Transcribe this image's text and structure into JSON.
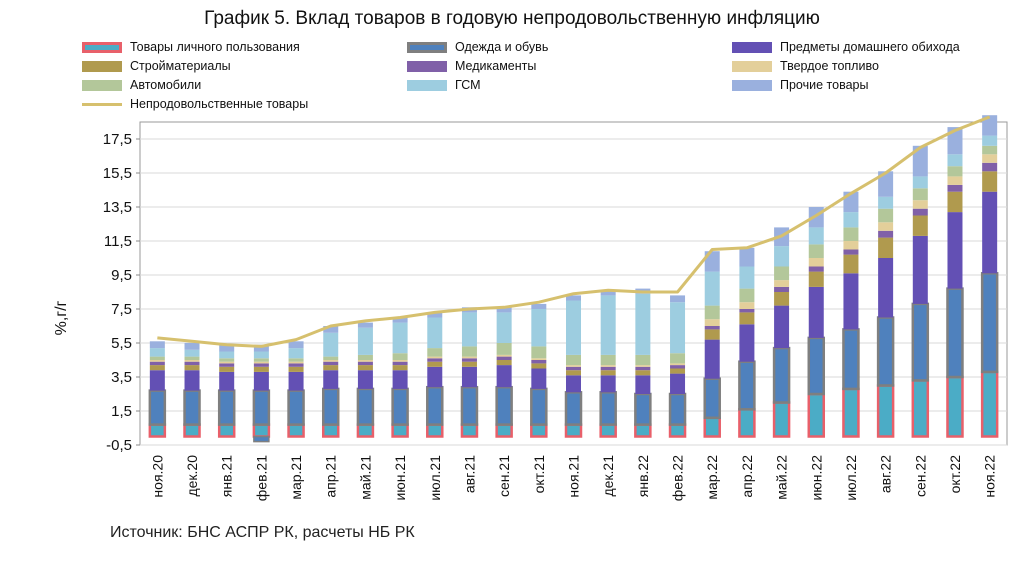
{
  "chart_data": {
    "type": "bar",
    "title": "График 5. Вклад товаров в годовую непродовольственную инфляцию",
    "ylabel": "%,г/г",
    "xlabel": "",
    "ylim": [
      -0.5,
      18.5
    ],
    "yticks": [
      "-0,5",
      "1,5",
      "3,5",
      "5,5",
      "7,5",
      "9,5",
      "11,5",
      "13,5",
      "15,5",
      "17,5"
    ],
    "ytick_values": [
      -0.5,
      1.5,
      3.5,
      5.5,
      7.5,
      9.5,
      11.5,
      13.5,
      15.5,
      17.5
    ],
    "grid": true,
    "legend_position": "top",
    "categories": [
      "ноя.20",
      "дек.20",
      "янв.21",
      "фев.21",
      "мар.21",
      "апр.21",
      "май.21",
      "июн.21",
      "июл.21",
      "авг.21",
      "сен.21",
      "окт.21",
      "ноя.21",
      "дек.21",
      "янв.22",
      "фев.22",
      "мар.22",
      "апр.22",
      "май.22",
      "июн.22",
      "июл.22",
      "авг.22",
      "сен.22",
      "окт.22",
      "ноя.22"
    ],
    "series": [
      {
        "name": "Товары личного пользования",
        "color": "#4bacc6",
        "border": "#e8606a",
        "values": [
          0.7,
          0.7,
          0.7,
          0.7,
          0.7,
          0.7,
          0.7,
          0.7,
          0.7,
          0.7,
          0.7,
          0.7,
          0.7,
          0.7,
          0.7,
          0.7,
          1.1,
          1.6,
          2.0,
          2.5,
          2.8,
          3.0,
          3.3,
          3.5,
          3.8
        ]
      },
      {
        "name": "Одежда и обувь",
        "color": "#4f81bd",
        "border": "#7f7f7f",
        "values": [
          2.0,
          2.0,
          2.0,
          2.0,
          2.0,
          2.1,
          2.1,
          2.1,
          2.2,
          2.2,
          2.2,
          2.1,
          1.9,
          1.9,
          1.8,
          1.8,
          2.3,
          2.8,
          3.2,
          3.3,
          3.5,
          4.0,
          4.5,
          5.2,
          5.8
        ]
      },
      {
        "name": "Предметы домашнего обихода",
        "color": "#6350b4",
        "values": [
          1.2,
          1.2,
          1.1,
          1.1,
          1.1,
          1.1,
          1.1,
          1.1,
          1.2,
          1.2,
          1.3,
          1.2,
          1.0,
          1.0,
          1.1,
          1.2,
          2.3,
          2.2,
          2.5,
          3.0,
          3.3,
          3.5,
          4.0,
          4.5,
          4.8
        ]
      },
      {
        "name": "Стройматериалы",
        "color": "#b09a4e",
        "values": [
          0.3,
          0.3,
          0.3,
          0.3,
          0.3,
          0.3,
          0.3,
          0.3,
          0.3,
          0.3,
          0.3,
          0.3,
          0.3,
          0.3,
          0.3,
          0.3,
          0.6,
          0.7,
          0.8,
          0.9,
          1.1,
          1.2,
          1.2,
          1.2,
          1.2
        ]
      },
      {
        "name": "Медикаменты",
        "color": "#8060a8",
        "values": [
          0.2,
          0.2,
          0.2,
          0.2,
          0.2,
          0.2,
          0.2,
          0.2,
          0.2,
          0.2,
          0.2,
          0.2,
          0.2,
          0.2,
          0.2,
          0.2,
          0.2,
          0.2,
          0.3,
          0.3,
          0.3,
          0.4,
          0.4,
          0.4,
          0.5
        ]
      },
      {
        "name": "Твердое топливо",
        "color": "#e3cf9a",
        "values": [
          0.1,
          0.1,
          0.1,
          0.1,
          0.1,
          0.1,
          0.1,
          0.1,
          0.1,
          0.1,
          0.1,
          0.1,
          0.1,
          0.1,
          0.1,
          0.1,
          0.4,
          0.4,
          0.4,
          0.5,
          0.5,
          0.5,
          0.5,
          0.5,
          0.5
        ]
      },
      {
        "name": "Автомобили",
        "color": "#b3c79a",
        "values": [
          0.2,
          0.2,
          0.2,
          0.2,
          0.2,
          0.2,
          0.3,
          0.4,
          0.5,
          0.6,
          0.7,
          0.7,
          0.6,
          0.6,
          0.6,
          0.6,
          0.8,
          0.8,
          0.8,
          0.8,
          0.8,
          0.8,
          0.7,
          0.6,
          0.5
        ]
      },
      {
        "name": "ГСМ",
        "color": "#9dcde0",
        "values": [
          0.5,
          0.4,
          0.4,
          0.4,
          0.6,
          1.4,
          1.6,
          1.8,
          1.8,
          2.0,
          1.8,
          2.2,
          3.2,
          3.5,
          3.6,
          3.0,
          2.0,
          1.3,
          1.2,
          1.0,
          0.9,
          0.7,
          0.7,
          0.7,
          0.6
        ]
      },
      {
        "name": "Прочие товары",
        "color": "#9ab0de",
        "values": [
          0.4,
          0.4,
          0.4,
          0.4,
          0.4,
          0.4,
          0.3,
          0.3,
          0.3,
          0.3,
          0.3,
          0.3,
          0.3,
          0.3,
          0.3,
          0.4,
          1.2,
          1.1,
          1.1,
          1.2,
          1.2,
          1.5,
          1.8,
          1.6,
          1.2
        ]
      }
    ],
    "negative_bar": {
      "series_index": 1,
      "category_index": 3,
      "value": -0.3
    },
    "line": {
      "name": "Непродовольственные товары",
      "color": "#d6c06e",
      "values": [
        5.8,
        5.6,
        5.4,
        5.3,
        5.7,
        6.5,
        6.8,
        7.0,
        7.3,
        7.5,
        7.6,
        7.9,
        8.4,
        8.6,
        8.5,
        8.5,
        11.0,
        11.1,
        11.8,
        13.0,
        14.3,
        15.5,
        17.0,
        18.0,
        18.8
      ]
    }
  },
  "source_note": "Источник: БНС АСПР РК, расчеты НБ РК"
}
